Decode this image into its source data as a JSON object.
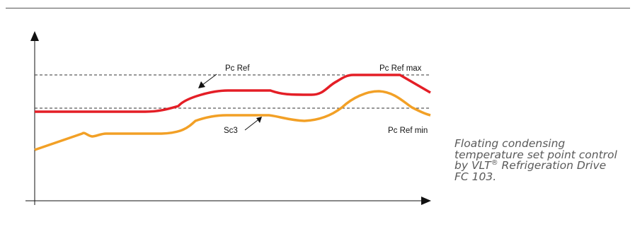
{
  "diagram": {
    "labels": {
      "pc_ref": "Pc Ref",
      "pc_ref_max": "Pc Ref max",
      "pc_ref_min": "Pc Ref min",
      "sc3": "Sc3"
    },
    "colors": {
      "pc_ref_curve": "#e41e26",
      "sc3_curve": "#f2a026",
      "axes": "#111111",
      "limit_lines": "#333333"
    }
  },
  "caption": {
    "line1": "Floating condensing",
    "line2": "temperature set point control",
    "line3_prefix": "by VLT",
    "line3_reg": "®",
    "line3_suffix": " Refrigeration Drive",
    "line4": "FC 103."
  }
}
